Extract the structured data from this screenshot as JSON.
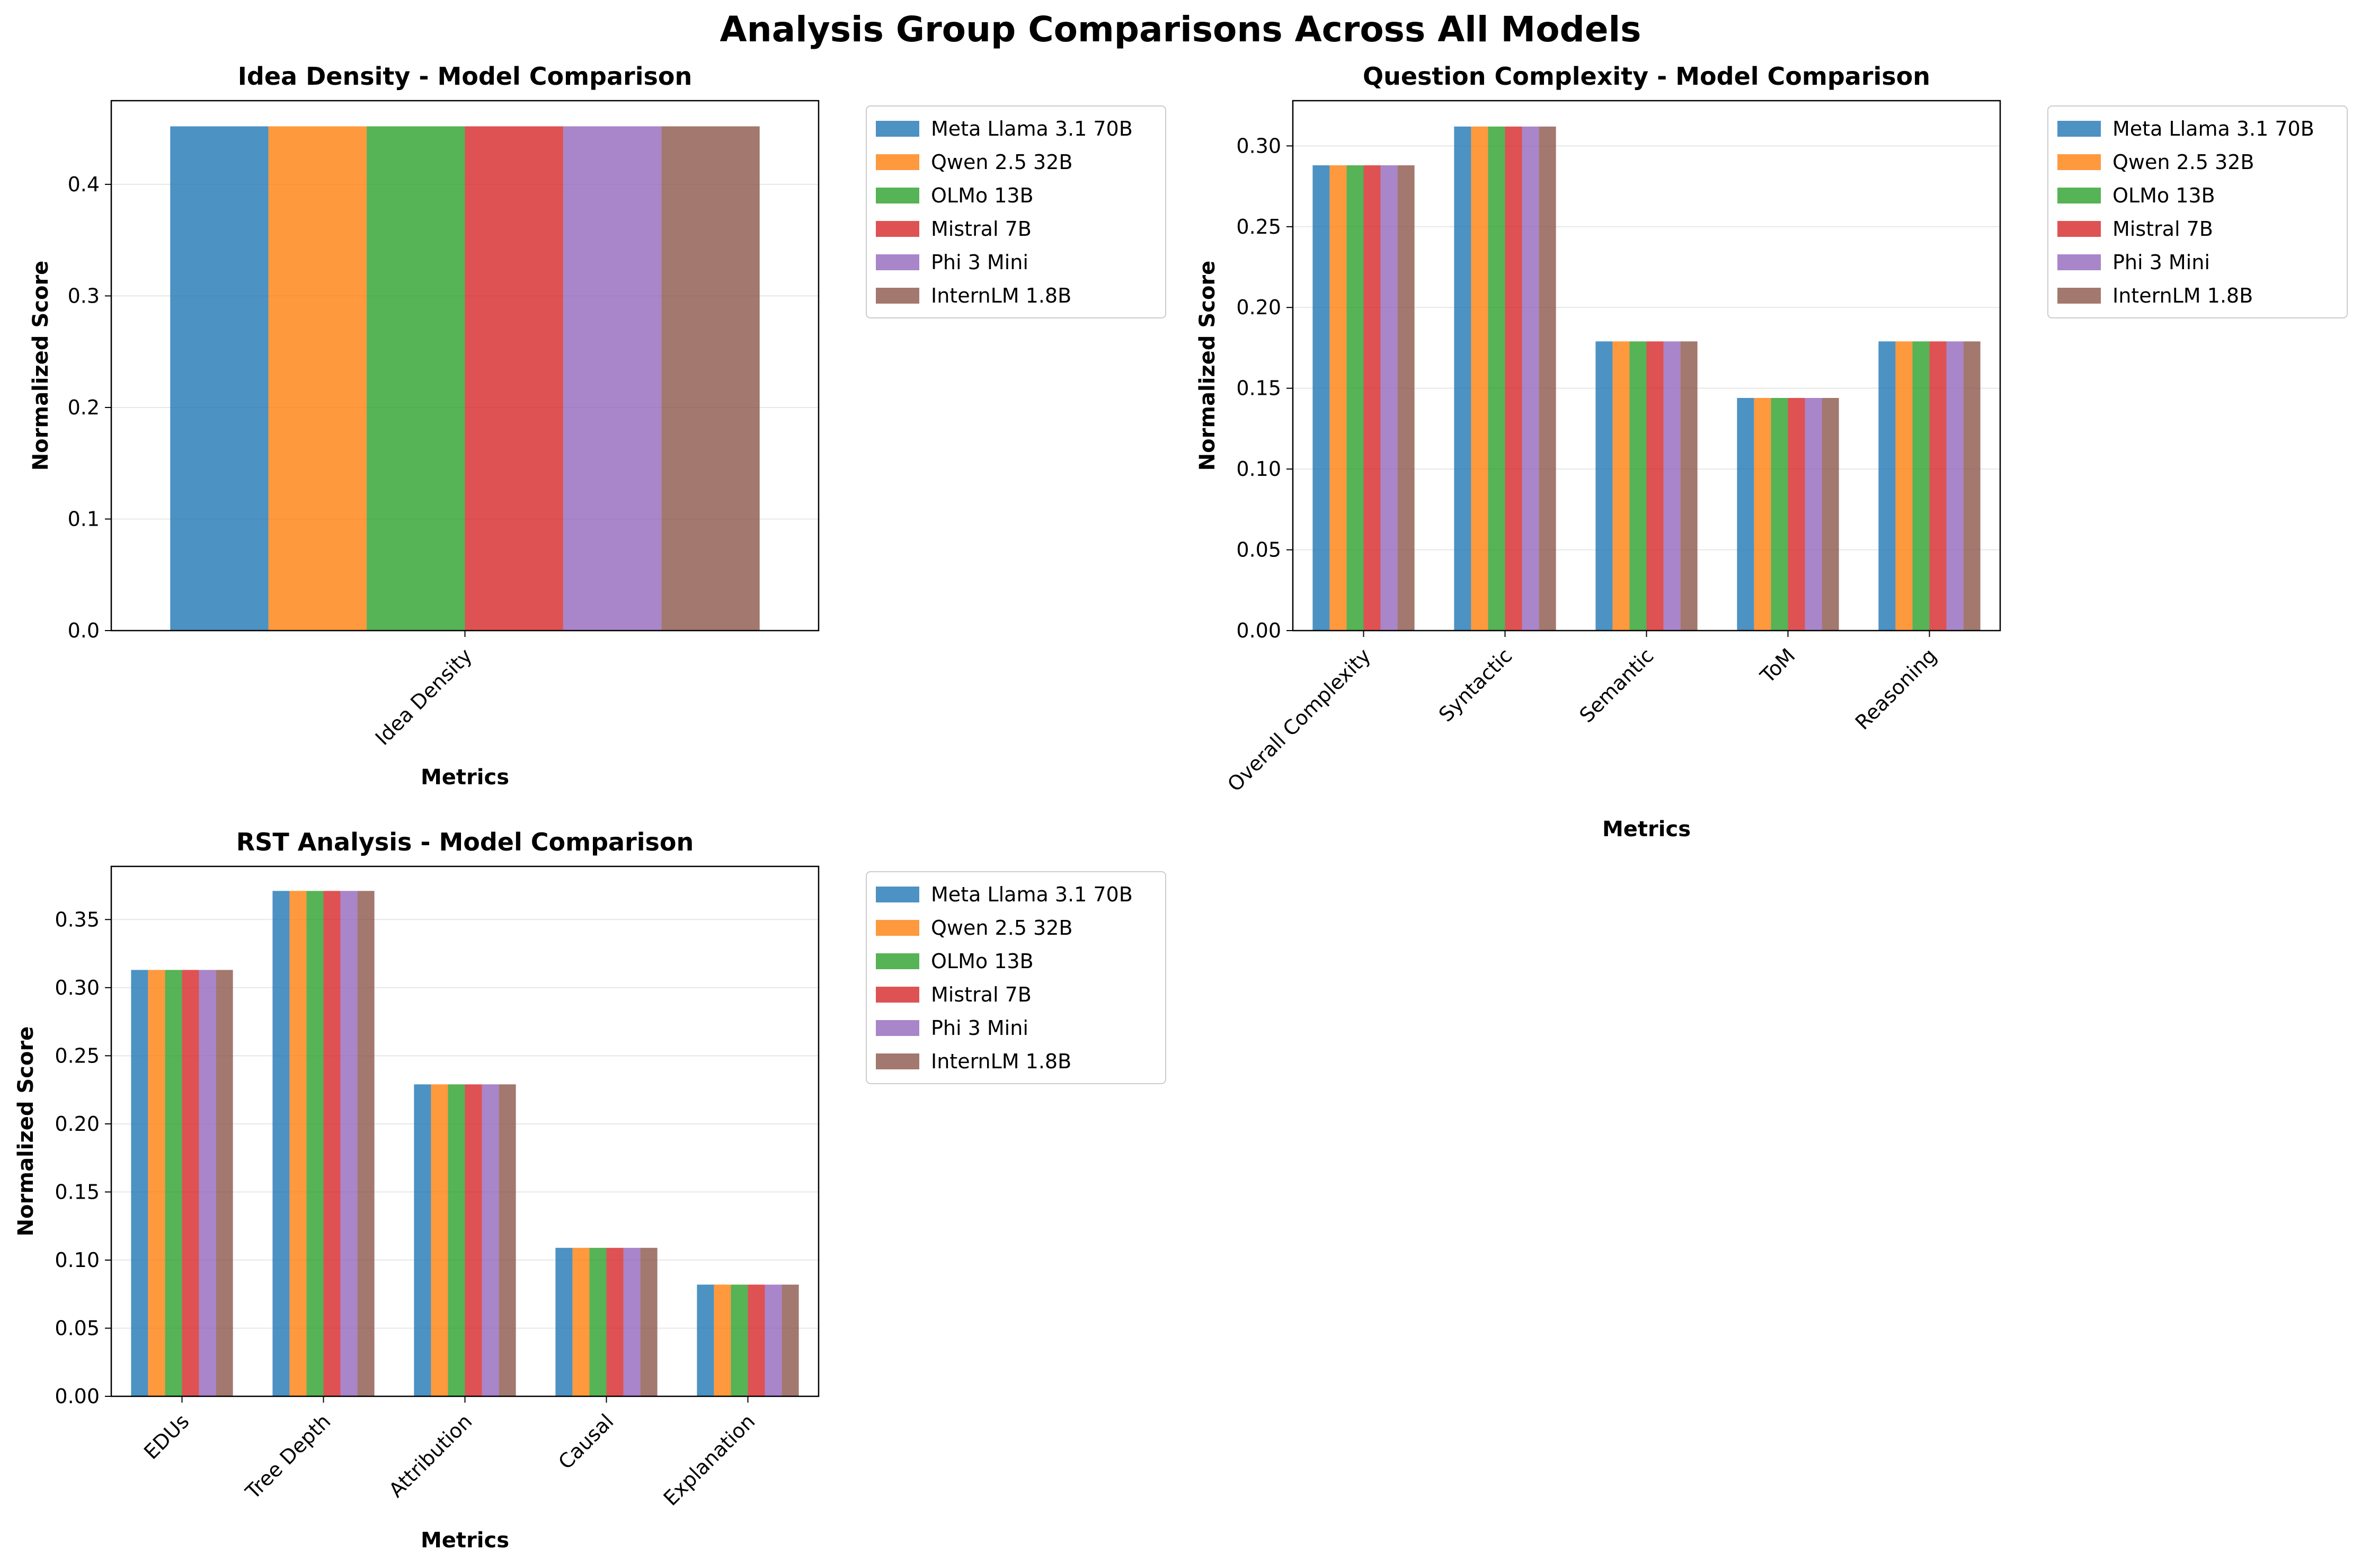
{
  "figure": {
    "title": "Analysis Group Comparisons Across All Models"
  },
  "colors": [
    "#1f77b4",
    "#ff7f0e",
    "#2ca02c",
    "#d62728",
    "#9467bd",
    "#8c564b"
  ],
  "chart_data": [
    {
      "type": "bar",
      "title": "Idea Density - Model Comparison",
      "xlabel": "Metrics",
      "ylabel": "Normalized Score",
      "categories": [
        "Idea Density"
      ],
      "ylim": [
        0,
        0.475
      ],
      "yticks": [
        0.0,
        0.1,
        0.2,
        0.3,
        0.4
      ],
      "ytick_labels": [
        "0.0",
        "0.1",
        "0.2",
        "0.3",
        "0.4"
      ],
      "grid": "y",
      "legend": "outside-right",
      "series": [
        {
          "name": "Meta Llama 3.1 70B",
          "values": [
            0.452
          ]
        },
        {
          "name": "Qwen 2.5 32B",
          "values": [
            0.452
          ]
        },
        {
          "name": "OLMo 13B",
          "values": [
            0.452
          ]
        },
        {
          "name": "Mistral 7B",
          "values": [
            0.452
          ]
        },
        {
          "name": "Phi 3 Mini",
          "values": [
            0.452
          ]
        },
        {
          "name": "InternLM 1.8B",
          "values": [
            0.452
          ]
        }
      ]
    },
    {
      "type": "bar",
      "title": "Question Complexity - Model Comparison",
      "xlabel": "Metrics",
      "ylabel": "Normalized Score",
      "categories": [
        "Overall Complexity",
        "Syntactic",
        "Semantic",
        "ToM",
        "Reasoning"
      ],
      "ylim": [
        0,
        0.328
      ],
      "yticks": [
        0.0,
        0.05,
        0.1,
        0.15,
        0.2,
        0.25,
        0.3
      ],
      "ytick_labels": [
        "0.00",
        "0.05",
        "0.10",
        "0.15",
        "0.20",
        "0.25",
        "0.30"
      ],
      "grid": "y",
      "legend": "outside-right",
      "series": [
        {
          "name": "Meta Llama 3.1 70B",
          "values": [
            0.288,
            0.312,
            0.179,
            0.144,
            0.179
          ]
        },
        {
          "name": "Qwen 2.5 32B",
          "values": [
            0.288,
            0.312,
            0.179,
            0.144,
            0.179
          ]
        },
        {
          "name": "OLMo 13B",
          "values": [
            0.288,
            0.312,
            0.179,
            0.144,
            0.179
          ]
        },
        {
          "name": "Mistral 7B",
          "values": [
            0.288,
            0.312,
            0.179,
            0.144,
            0.179
          ]
        },
        {
          "name": "Phi 3 Mini",
          "values": [
            0.288,
            0.312,
            0.179,
            0.144,
            0.179
          ]
        },
        {
          "name": "InternLM 1.8B",
          "values": [
            0.288,
            0.312,
            0.179,
            0.144,
            0.179
          ]
        }
      ]
    },
    {
      "type": "bar",
      "title": "RST Analysis - Model Comparison",
      "xlabel": "Metrics",
      "ylabel": "Normalized Score",
      "categories": [
        "EDUs",
        "Tree Depth",
        "Attribution",
        "Causal",
        "Explanation"
      ],
      "ylim": [
        0,
        0.389
      ],
      "yticks": [
        0.0,
        0.05,
        0.1,
        0.15,
        0.2,
        0.25,
        0.3,
        0.35
      ],
      "ytick_labels": [
        "0.00",
        "0.05",
        "0.10",
        "0.15",
        "0.20",
        "0.25",
        "0.30",
        "0.35"
      ],
      "grid": "y",
      "legend": "outside-right",
      "series": [
        {
          "name": "Meta Llama 3.1 70B",
          "values": [
            0.313,
            0.371,
            0.229,
            0.109,
            0.082
          ]
        },
        {
          "name": "Qwen 2.5 32B",
          "values": [
            0.313,
            0.371,
            0.229,
            0.109,
            0.082
          ]
        },
        {
          "name": "OLMo 13B",
          "values": [
            0.313,
            0.371,
            0.229,
            0.109,
            0.082
          ]
        },
        {
          "name": "Mistral 7B",
          "values": [
            0.313,
            0.371,
            0.229,
            0.109,
            0.082
          ]
        },
        {
          "name": "Phi 3 Mini",
          "values": [
            0.313,
            0.371,
            0.229,
            0.109,
            0.082
          ]
        },
        {
          "name": "InternLM 1.8B",
          "values": [
            0.313,
            0.371,
            0.229,
            0.109,
            0.082
          ]
        }
      ]
    }
  ]
}
